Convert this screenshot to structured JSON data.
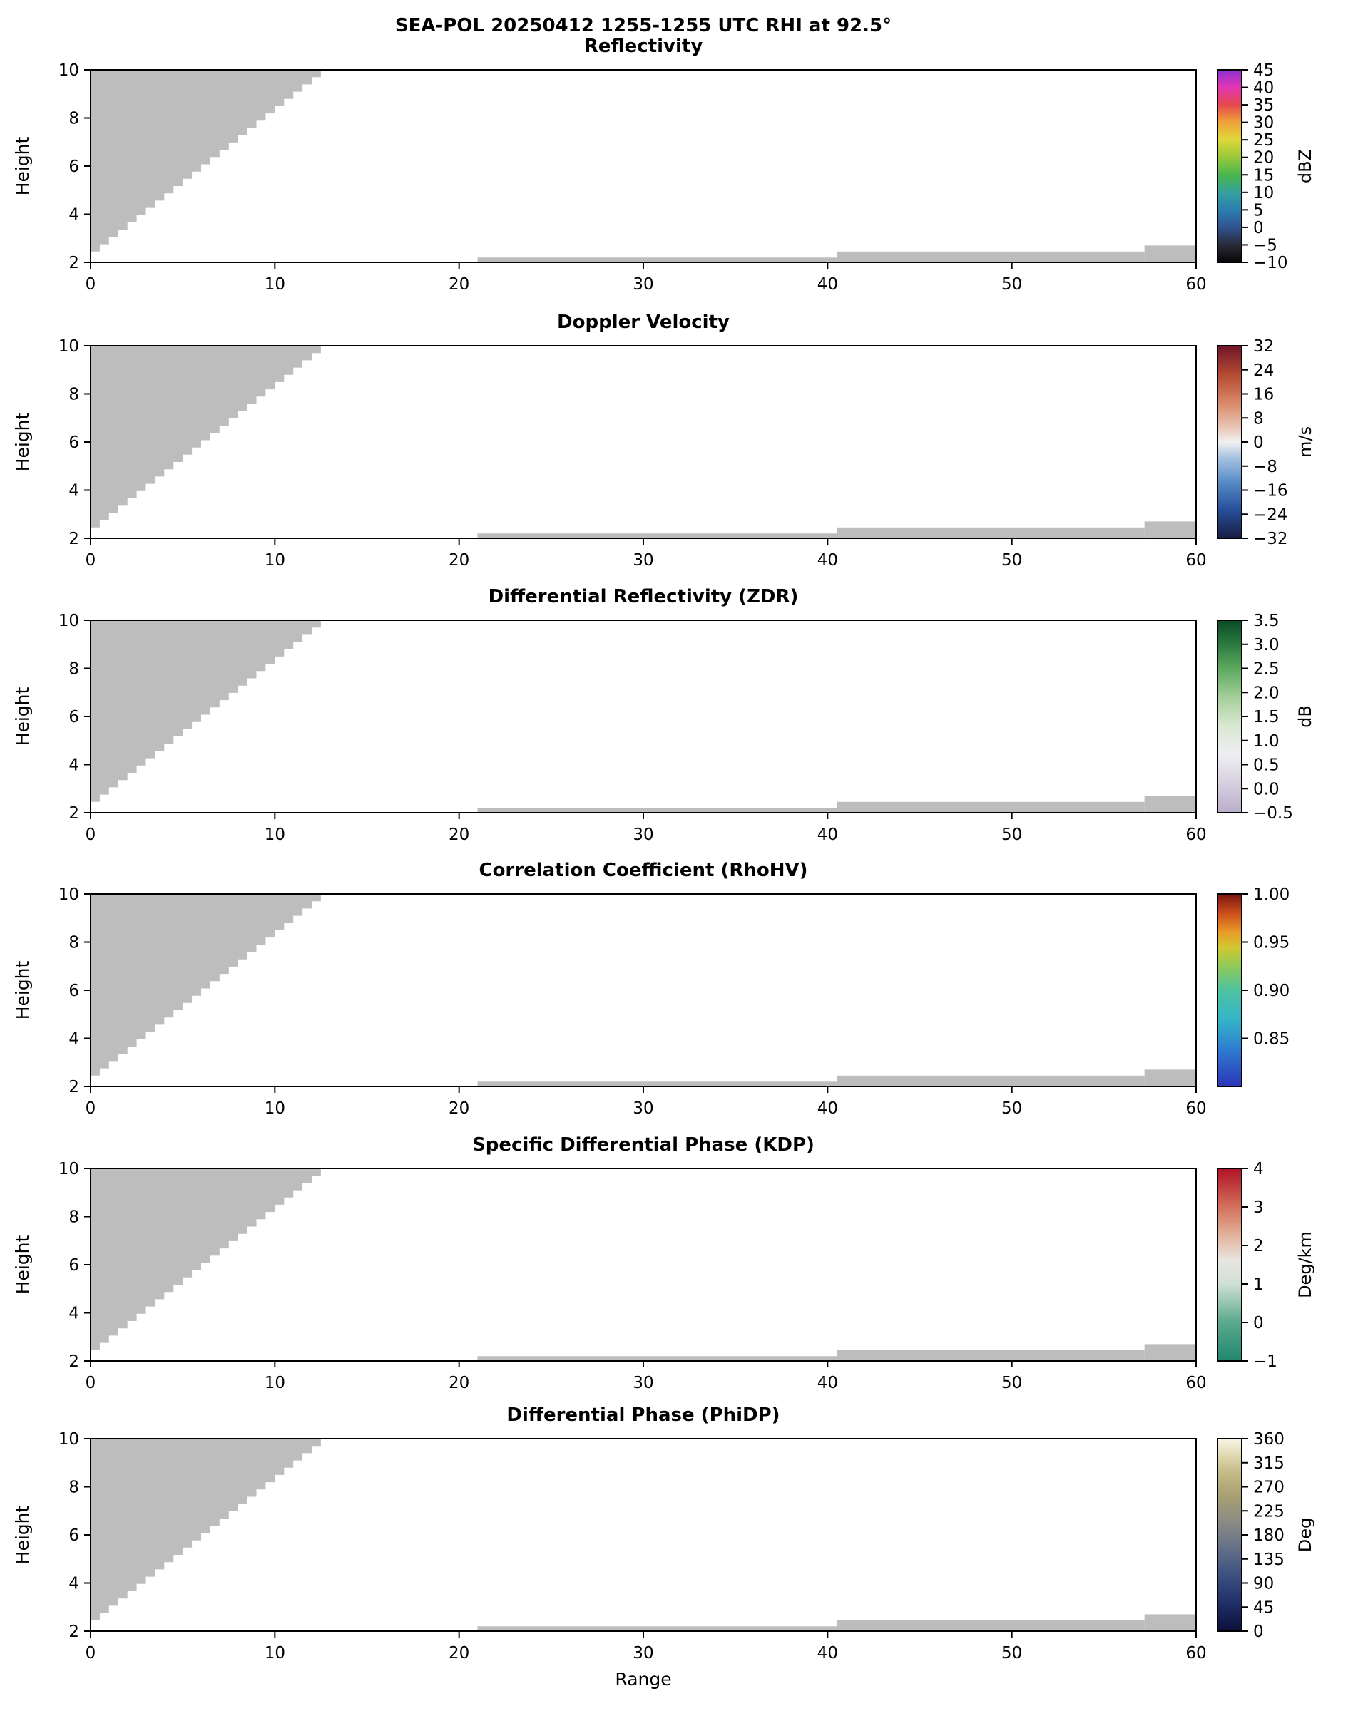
{
  "figure": {
    "suptitle": "SEA-POL 20250412 1255-1255 UTC RHI at 92.5°",
    "xlabel": "Range",
    "ylabel": "Height",
    "background": "#ffffff",
    "frame_color": "#000000",
    "mask_color": "#bdbdbd"
  },
  "chart_data": {
    "type": "heatmap",
    "title": "SEA-POL 20250412 1255-1255 UTC RHI at 92.5°",
    "xlabel": "Range",
    "ylabel": "Height",
    "xlim": [
      0,
      60
    ],
    "ylim": [
      2,
      10
    ],
    "xticks": [
      0,
      10,
      20,
      30,
      40,
      50,
      60
    ],
    "yticks": [
      2,
      4,
      6,
      8,
      10
    ],
    "grid": false,
    "legend_position": "right-colorbar",
    "note": "Six stacked RHI panels; only gray masked/no-echo regions are visible (no colored radar echo). Identical gray mask geometry repeats in every panel.",
    "masked_regions": {
      "wedge": {
        "shape": "staircase",
        "x_start": 0,
        "y_start": 2.15,
        "x_end": 13,
        "y_end": 10,
        "steps": 26
      },
      "bottom_strips": [
        {
          "x0": 21,
          "x1": 40.5,
          "y0": 2,
          "y1": 2.2
        },
        {
          "x0": 40.5,
          "x1": 57.2,
          "y0": 2,
          "y1": 2.45
        },
        {
          "x0": 57.2,
          "x1": 60,
          "y0": 2,
          "y1": 2.7
        }
      ]
    },
    "panels": [
      {
        "slug": "reflectivity",
        "title": "Reflectivity",
        "units": "dBZ",
        "vmin": -10,
        "vmax": 45,
        "colorbar_ticks": [
          {
            "v": 45,
            "label": "45"
          },
          {
            "v": 40,
            "label": "40"
          },
          {
            "v": 35,
            "label": "35"
          },
          {
            "v": 30,
            "label": "30"
          },
          {
            "v": 25,
            "label": "25"
          },
          {
            "v": 20,
            "label": "20"
          },
          {
            "v": 15,
            "label": "15"
          },
          {
            "v": 10,
            "label": "10"
          },
          {
            "v": 5,
            "label": "5"
          },
          {
            "v": 0,
            "label": "0"
          },
          {
            "v": -5,
            "label": "−5"
          },
          {
            "v": -10,
            "label": "−10"
          }
        ],
        "cmap": [
          [
            0,
            "#050505"
          ],
          [
            0.09,
            "#2a2a3a"
          ],
          [
            0.18,
            "#31518f"
          ],
          [
            0.27,
            "#2b7db0"
          ],
          [
            0.36,
            "#35a0a0"
          ],
          [
            0.45,
            "#46b54e"
          ],
          [
            0.55,
            "#9cc93c"
          ],
          [
            0.64,
            "#e0d83a"
          ],
          [
            0.73,
            "#efa03a"
          ],
          [
            0.82,
            "#e5484d"
          ],
          [
            0.91,
            "#e236b6"
          ],
          [
            1,
            "#8e2fd0"
          ]
        ]
      },
      {
        "slug": "doppler-velocity",
        "title": "Doppler Velocity",
        "units": "m/s",
        "vmin": -32,
        "vmax": 32,
        "colorbar_ticks": [
          {
            "v": 32,
            "label": "32"
          },
          {
            "v": 24,
            "label": "24"
          },
          {
            "v": 16,
            "label": "16"
          },
          {
            "v": 8,
            "label": "8"
          },
          {
            "v": 0,
            "label": "0"
          },
          {
            "v": -8,
            "label": "−8"
          },
          {
            "v": -16,
            "label": "−16"
          },
          {
            "v": -24,
            "label": "−24"
          },
          {
            "v": -32,
            "label": "−32"
          }
        ],
        "cmap": [
          [
            0,
            "#181d43"
          ],
          [
            0.15,
            "#27509b"
          ],
          [
            0.3,
            "#5b8fc9"
          ],
          [
            0.42,
            "#a8c3e0"
          ],
          [
            0.5,
            "#f1f1f1"
          ],
          [
            0.58,
            "#e7c3b2"
          ],
          [
            0.7,
            "#d98a6a"
          ],
          [
            0.85,
            "#b44a33"
          ],
          [
            1,
            "#701527"
          ]
        ]
      },
      {
        "slug": "zdr",
        "title": "Differential Reflectivity (ZDR)",
        "units": "dB",
        "vmin": -0.5,
        "vmax": 3.5,
        "colorbar_ticks": [
          {
            "v": 3.5,
            "label": "3.5"
          },
          {
            "v": 3,
            "label": "3.0"
          },
          {
            "v": 2.5,
            "label": "2.5"
          },
          {
            "v": 2,
            "label": "2.0"
          },
          {
            "v": 1.5,
            "label": "1.5"
          },
          {
            "v": 1,
            "label": "1.0"
          },
          {
            "v": 0.5,
            "label": "0.5"
          },
          {
            "v": 0,
            "label": "0.0"
          },
          {
            "v": -0.5,
            "label": "−0.5"
          }
        ],
        "cmap": [
          [
            0,
            "#b9aecb"
          ],
          [
            0.15,
            "#d6cfdf"
          ],
          [
            0.3,
            "#efeef2"
          ],
          [
            0.45,
            "#d9e8d2"
          ],
          [
            0.6,
            "#a5cf9a"
          ],
          [
            0.75,
            "#5ba85e"
          ],
          [
            0.9,
            "#23703a"
          ],
          [
            1,
            "#0b4a26"
          ]
        ]
      },
      {
        "slug": "rhohv",
        "title": "Correlation Coefficient (RhoHV)",
        "units": "",
        "vmin": 0.8,
        "vmax": 1.0,
        "colorbar_ticks": [
          {
            "v": 1,
            "label": "1.00"
          },
          {
            "v": 0.95,
            "label": "0.95"
          },
          {
            "v": 0.9,
            "label": "0.90"
          },
          {
            "v": 0.85,
            "label": "0.85"
          }
        ],
        "cmap": [
          [
            0,
            "#2b35b8"
          ],
          [
            0.2,
            "#2f7fd0"
          ],
          [
            0.35,
            "#35b5c8"
          ],
          [
            0.5,
            "#4ec2a0"
          ],
          [
            0.62,
            "#8cc95a"
          ],
          [
            0.72,
            "#d2c832"
          ],
          [
            0.8,
            "#e89c28"
          ],
          [
            0.9,
            "#cc4f1d"
          ],
          [
            1,
            "#7a1410"
          ]
        ]
      },
      {
        "slug": "kdp",
        "title": "Specific Differential Phase (KDP)",
        "units": "Deg/km",
        "vmin": -1,
        "vmax": 4,
        "colorbar_ticks": [
          {
            "v": 4,
            "label": "4"
          },
          {
            "v": 3,
            "label": "3"
          },
          {
            "v": 2,
            "label": "2"
          },
          {
            "v": 1,
            "label": "1"
          },
          {
            "v": 0,
            "label": "0"
          },
          {
            "v": -1,
            "label": "−1"
          }
        ],
        "cmap": [
          [
            0,
            "#20876f"
          ],
          [
            0.2,
            "#5aa98c"
          ],
          [
            0.4,
            "#cfe0d6"
          ],
          [
            0.52,
            "#e8e6e0"
          ],
          [
            0.65,
            "#e3b49e"
          ],
          [
            0.8,
            "#d3705a"
          ],
          [
            1,
            "#b01227"
          ]
        ]
      },
      {
        "slug": "phidp",
        "title": "Differential Phase (PhiDP)",
        "units": "Deg",
        "vmin": 0,
        "vmax": 360,
        "colorbar_ticks": [
          {
            "v": 360,
            "label": "360"
          },
          {
            "v": 315,
            "label": "315"
          },
          {
            "v": 270,
            "label": "270"
          },
          {
            "v": 225,
            "label": "225"
          },
          {
            "v": 180,
            "label": "180"
          },
          {
            "v": 135,
            "label": "135"
          },
          {
            "v": 90,
            "label": "90"
          },
          {
            "v": 45,
            "label": "45"
          },
          {
            "v": 0,
            "label": "0"
          }
        ],
        "cmap": [
          [
            0,
            "#0b1038"
          ],
          [
            0.15,
            "#20306a"
          ],
          [
            0.3,
            "#3f5380"
          ],
          [
            0.45,
            "#6a7488"
          ],
          [
            0.58,
            "#8d8d83"
          ],
          [
            0.7,
            "#a89f72"
          ],
          [
            0.82,
            "#c3ba85"
          ],
          [
            0.92,
            "#e2dbb4"
          ],
          [
            1,
            "#f7f5e8"
          ]
        ]
      }
    ]
  }
}
